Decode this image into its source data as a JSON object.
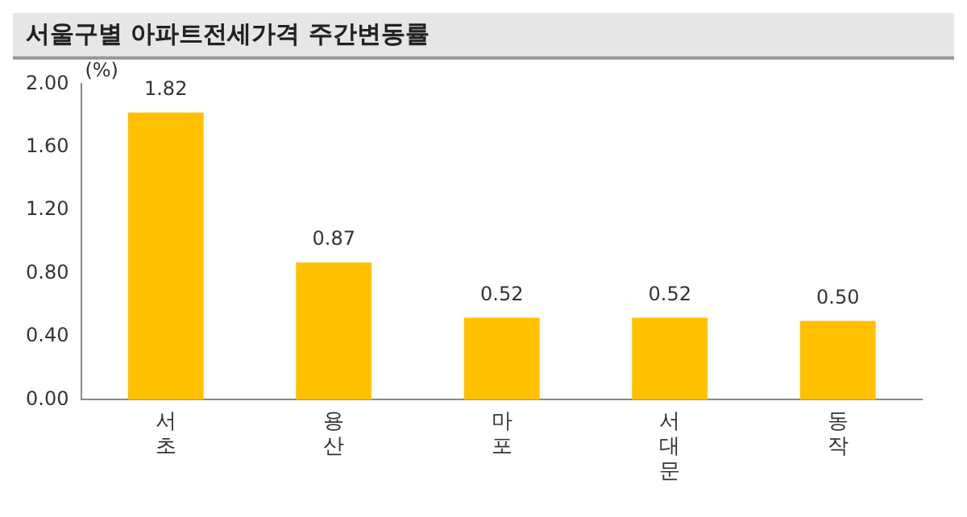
{
  "chart_data": {
    "type": "bar",
    "title": "서울구별 아파트전세가격 주간변동률",
    "ylabel": "(%)",
    "categories": [
      "서초",
      "용산",
      "마포",
      "서대문",
      "동작"
    ],
    "values": [
      1.82,
      0.87,
      0.52,
      0.52,
      0.5
    ],
    "color": "#ffc000",
    "ylim": [
      0,
      2
    ],
    "yticks": [
      {
        "value": 0,
        "label": "0.00"
      },
      {
        "value": 0.4,
        "label": "0.40"
      },
      {
        "value": 0.8,
        "label": "0.80"
      },
      {
        "value": 1.2,
        "label": "1.20"
      },
      {
        "value": 1.6,
        "label": "1.60"
      },
      {
        "value": 2,
        "label": "2.00"
      }
    ],
    "value_labels": [
      "1.82",
      "0.87",
      "0.52",
      "0.52",
      "0.50"
    ],
    "grid": false,
    "legend": false
  }
}
